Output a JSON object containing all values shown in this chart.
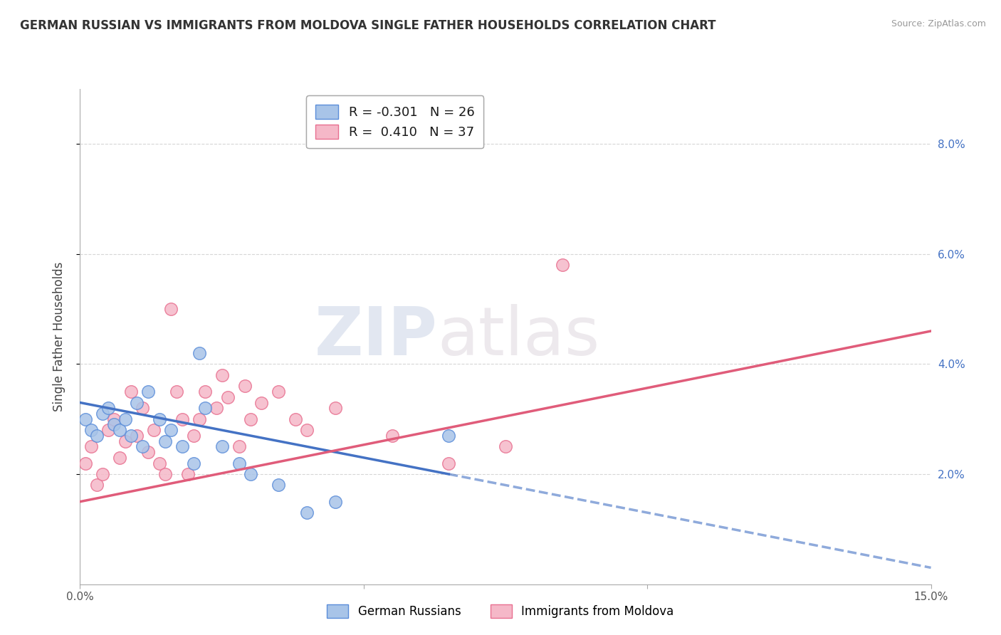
{
  "title": "GERMAN RUSSIAN VS IMMIGRANTS FROM MOLDOVA SINGLE FATHER HOUSEHOLDS CORRELATION CHART",
  "source": "Source: ZipAtlas.com",
  "ylabel": "Single Father Households",
  "x_min": 0.0,
  "x_max": 15.0,
  "y_min": 0.0,
  "y_max": 9.0,
  "y_ticks": [
    2.0,
    4.0,
    6.0,
    8.0
  ],
  "x_ticks": [
    0.0,
    5.0,
    10.0,
    15.0
  ],
  "x_tick_labels": [
    "0.0%",
    "",
    "",
    "15.0%"
  ],
  "y_tick_labels_right": [
    "2.0%",
    "4.0%",
    "6.0%",
    "8.0%"
  ],
  "series1_label": "German Russians",
  "series1_color": "#a8c4e8",
  "series1_edge_color": "#5b8dd9",
  "series1_line_color": "#4472c4",
  "series1_R": -0.301,
  "series1_N": 26,
  "series2_label": "Immigrants from Moldova",
  "series2_color": "#f5b8c8",
  "series2_edge_color": "#e87090",
  "series2_line_color": "#e05c7a",
  "series2_R": 0.41,
  "series2_N": 37,
  "watermark_zip": "ZIP",
  "watermark_atlas": "atlas",
  "blue_dots_x": [
    0.1,
    0.2,
    0.3,
    0.4,
    0.5,
    0.6,
    0.7,
    0.8,
    0.9,
    1.0,
    1.1,
    1.2,
    1.4,
    1.5,
    1.6,
    1.8,
    2.0,
    2.2,
    2.5,
    2.8,
    3.0,
    3.5,
    4.0,
    4.5,
    6.5,
    2.1
  ],
  "blue_dots_y": [
    3.0,
    2.8,
    2.7,
    3.1,
    3.2,
    2.9,
    2.8,
    3.0,
    2.7,
    3.3,
    2.5,
    3.5,
    3.0,
    2.6,
    2.8,
    2.5,
    2.2,
    3.2,
    2.5,
    2.2,
    2.0,
    1.8,
    1.3,
    1.5,
    2.7,
    4.2
  ],
  "pink_dots_x": [
    0.1,
    0.2,
    0.3,
    0.4,
    0.5,
    0.6,
    0.7,
    0.8,
    0.9,
    1.0,
    1.1,
    1.2,
    1.3,
    1.4,
    1.5,
    1.6,
    1.7,
    1.8,
    2.0,
    2.1,
    2.2,
    2.4,
    2.6,
    2.8,
    3.0,
    3.2,
    3.5,
    3.8,
    4.0,
    4.5,
    5.5,
    6.5,
    7.5,
    8.5,
    2.5,
    2.9,
    1.9
  ],
  "pink_dots_y": [
    2.2,
    2.5,
    1.8,
    2.0,
    2.8,
    3.0,
    2.3,
    2.6,
    3.5,
    2.7,
    3.2,
    2.4,
    2.8,
    2.2,
    2.0,
    5.0,
    3.5,
    3.0,
    2.7,
    3.0,
    3.5,
    3.2,
    3.4,
    2.5,
    3.0,
    3.3,
    3.5,
    3.0,
    2.8,
    3.2,
    2.7,
    2.2,
    2.5,
    5.8,
    3.8,
    3.6,
    2.0
  ],
  "background_color": "#ffffff",
  "grid_color": "#cccccc",
  "blue_line_start_x": 0.0,
  "blue_line_start_y": 3.3,
  "blue_line_end_x": 9.0,
  "blue_line_end_y": 1.5,
  "pink_line_start_x": 0.0,
  "pink_line_start_y": 1.5,
  "pink_line_end_x": 15.0,
  "pink_line_end_y": 4.6
}
